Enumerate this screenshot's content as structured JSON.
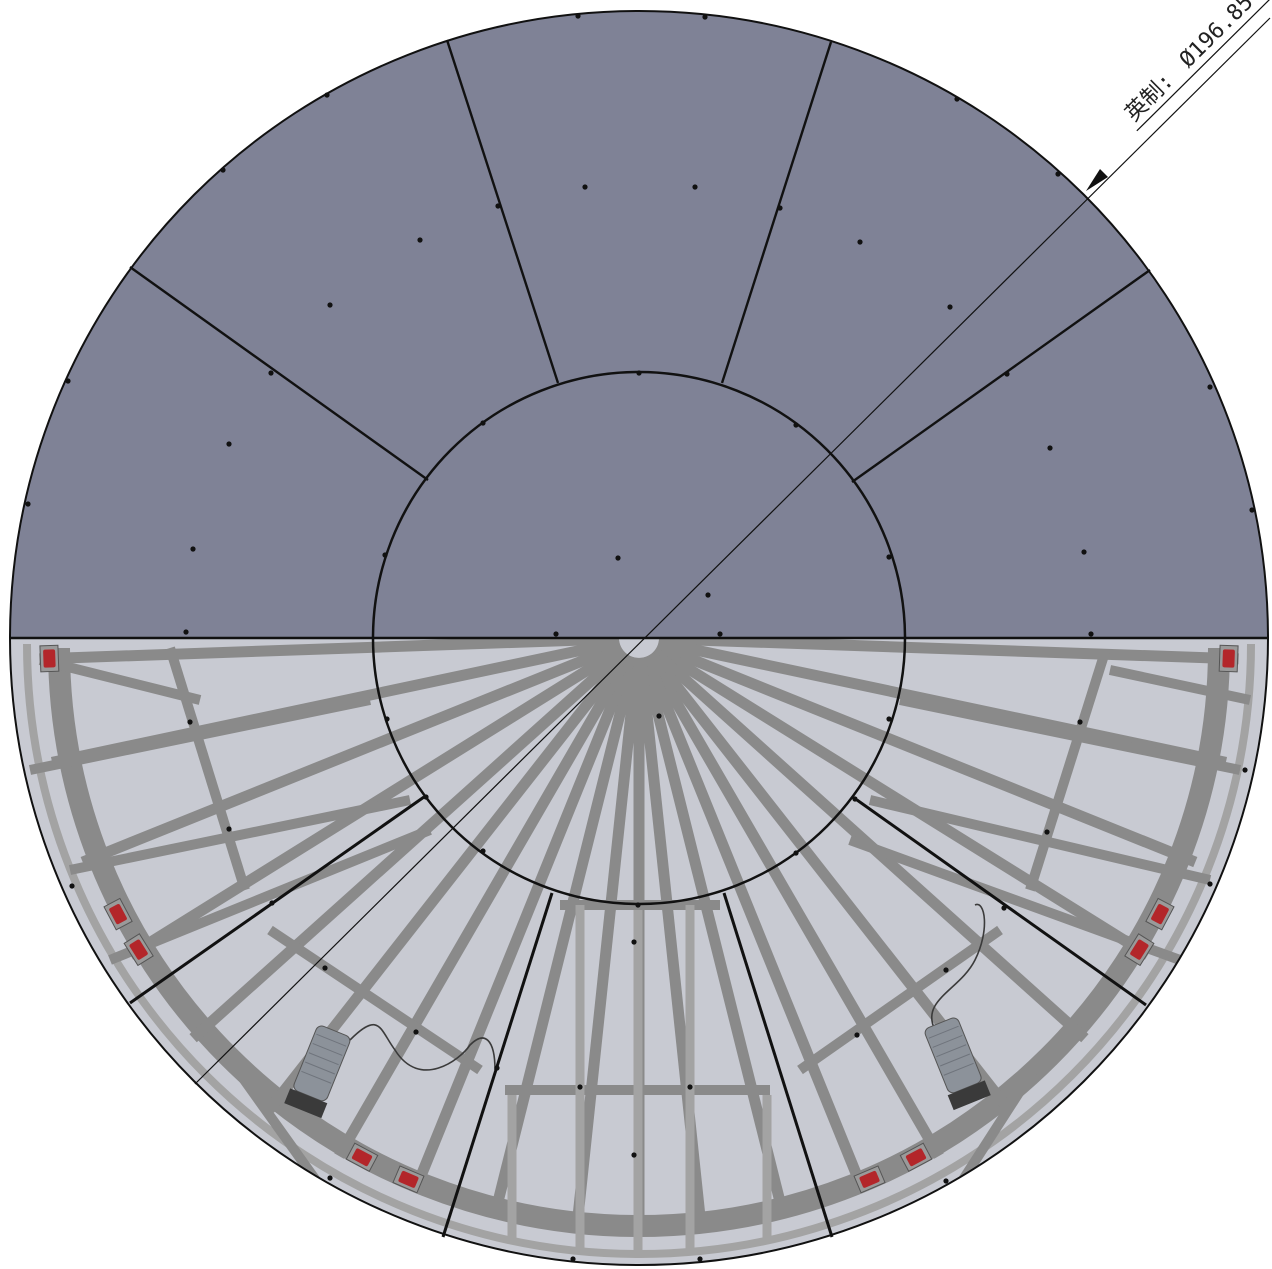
{
  "dimension": {
    "prefix": "英制:",
    "value": "Ø196.85"
  },
  "colors": {
    "top_panel": "#7f8296",
    "bottom_panel": "#c8cad2",
    "frame": "#8a8a8a",
    "frame_light": "#a3a3a3",
    "outline": "#111111",
    "wheel": "#b3262a",
    "motor": "#8c929a",
    "motor_base": "#3a3a3a",
    "background": "#ffffff"
  }
}
